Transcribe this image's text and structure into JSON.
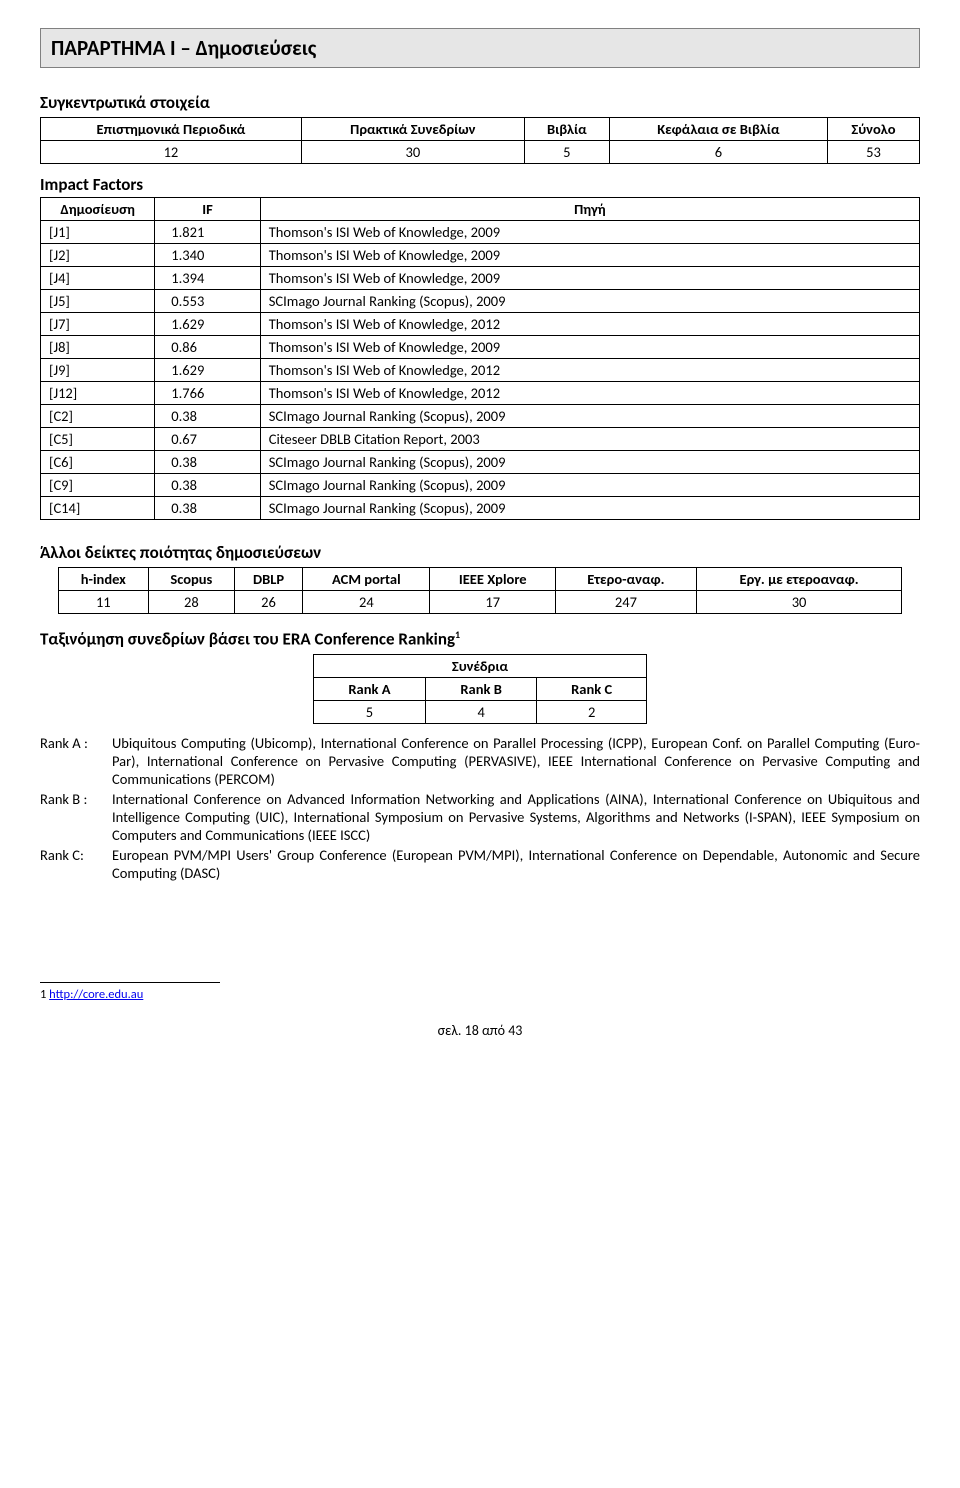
{
  "title": "ΠΑΡΑΡΤΗΜΑ Ι – Δημοσιεύσεις",
  "section_summary": "Συγκεντρωτικά στοιχεία",
  "summary_table": {
    "headers": [
      "Επιστημονικά Περιοδικά",
      "Πρακτικά Συνεδρίων",
      "Βιβλία",
      "Κεφάλαια σε Βιβλία",
      "Σύνολο"
    ],
    "row": [
      "12",
      "30",
      "5",
      "6",
      "53"
    ]
  },
  "impact_label": "Impact Factors",
  "impact_table": {
    "headers": [
      "Δημοσίευση",
      "IF",
      "Πηγή"
    ],
    "rows": [
      [
        "[J1]",
        "1.821",
        "Thomson's ISI Web of Knowledge, 2009"
      ],
      [
        "[J2]",
        "1.340",
        "Thomson's ISI Web of Knowledge, 2009"
      ],
      [
        "[J4]",
        "1.394",
        "Thomson's ISI Web of Knowledge, 2009"
      ],
      [
        "[J5]",
        "0.553",
        "SCImago Journal Ranking (Scopus), 2009"
      ],
      [
        "[J7]",
        "1.629",
        "Thomson's ISI Web of Knowledge, 2012"
      ],
      [
        "[J8]",
        "0.86",
        "Thomson's ISI Web of Knowledge, 2009"
      ],
      [
        "[J9]",
        "1.629",
        "Thomson's ISI Web of Knowledge, 2012"
      ],
      [
        "[J12]",
        "1.766",
        "Thomson's ISI Web of Knowledge, 2012"
      ],
      [
        "[C2]",
        "0.38",
        "SCImago Journal Ranking (Scopus), 2009"
      ],
      [
        "[C5]",
        "0.67",
        "Citeseer DBLB Citation Report, 2003"
      ],
      [
        "[C6]",
        "0.38",
        "SCImago Journal Ranking (Scopus), 2009"
      ],
      [
        "[C9]",
        "0.38",
        "SCImago Journal Ranking (Scopus), 2009"
      ],
      [
        "[C14]",
        "0.38",
        "SCImago Journal Ranking (Scopus), 2009"
      ]
    ]
  },
  "quality_header": "Άλλοι δείκτες ποιότητας δημοσιεύσεων",
  "idx_table": {
    "headers": [
      "h-index",
      "Scopus",
      "DBLP",
      "ACM portal",
      "IEEE Xplore",
      "Ετερο-αναφ.",
      "Εργ. με ετεροαναφ."
    ],
    "row": [
      "11",
      "28",
      "26",
      "24",
      "17",
      "247",
      "30"
    ]
  },
  "era_header_pre": "Ταξινόμηση συνεδρίων βάσει του ERA Conference Ranking",
  "era_header_sup": "1",
  "rank_table": {
    "top": "Συνέδρια",
    "headers": [
      "Rank A",
      "Rank B",
      "Rank C"
    ],
    "row": [
      "5",
      "4",
      "2"
    ]
  },
  "ranks": {
    "a_label": "Rank A :",
    "a_text": "Ubiquitous Computing (Ubicomp), International Conference on Parallel Processing (ICPP), European Conf. on Parallel Computing (Euro-Par), International Conference on Pervasive Computing (PERVASIVE),  IEEE International Conference on Pervasive Computing and Communications (PERCOM)",
    "b_label": "Rank B :",
    "b_text": "International Conference on Advanced Information Networking and Applications (AINA), International Conference on Ubiquitous and Intelligence Computing (UIC), International Symposium on Pervasive Systems, Algorithms and Networks (I-SPAN), IEEE Symposium on Computers and Communications (IEEE ISCC)",
    "c_label": "Rank C:",
    "c_text": "European PVM/MPI Users' Group Conference (European PVM/MPI), International Conference on Dependable, Autonomic and Secure Computing (DASC)"
  },
  "footnote": {
    "num": "1",
    "link": "http://core.edu.au"
  },
  "pagenum": "σελ. 18 από 43"
}
